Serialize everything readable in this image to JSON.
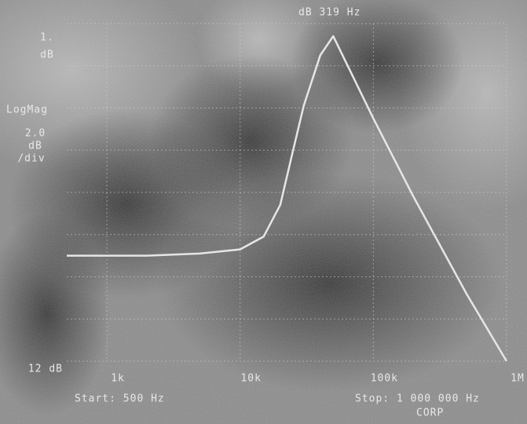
{
  "chart_data": {
    "type": "line",
    "marker_readout": "dB 319 Hz",
    "ref_value": "1.",
    "ref_unit": "dB",
    "format": "LogMag",
    "scale_value": "2.0",
    "scale_unit": "dB",
    "scale_per": "/div",
    "start_label": "Start: 500 Hz",
    "stop_label": "Stop: 1 000 000 Hz",
    "footer": "CORP",
    "x_scale": "log",
    "xlim": [
      500,
      1000000
    ],
    "xticks": [
      {
        "value": 1000,
        "label": "1k"
      },
      {
        "value": 10000,
        "label": "10k"
      },
      {
        "value": 100000,
        "label": "100k"
      },
      {
        "value": 1000000,
        "label": "1M"
      }
    ],
    "ylim": [
      12,
      28
    ],
    "yticks": [
      {
        "value": 12,
        "label": "12 dB"
      }
    ],
    "ygrid": [
      14,
      16,
      18,
      20,
      22,
      24,
      26,
      28
    ],
    "grid": true,
    "x": [
      500,
      2000,
      5000,
      10000,
      15000,
      20000,
      25000,
      30000,
      40000,
      50000,
      100000,
      200000,
      500000,
      1000000
    ],
    "series": [
      {
        "color": "#e6e6e6",
        "values": [
          17.0,
          17.0,
          17.1,
          17.3,
          17.9,
          19.4,
          22.0,
          24.1,
          26.5,
          27.4,
          23.5,
          19.8,
          15.2,
          12.0
        ]
      }
    ]
  }
}
